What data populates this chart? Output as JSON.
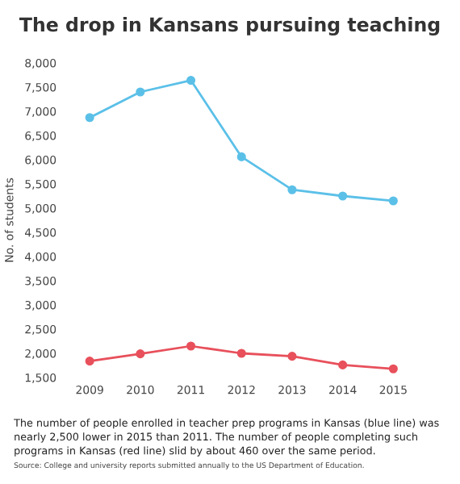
{
  "chart_data": {
    "type": "line",
    "title": "The drop in Kansans pursuing teaching",
    "ylabel": "No. of students",
    "categories": [
      "2009",
      "2010",
      "2011",
      "2012",
      "2013",
      "2014",
      "2015"
    ],
    "series": [
      {
        "color": "#5bc0e8",
        "values": [
          6870,
          7400,
          7640,
          6060,
          5380,
          5250,
          5150
        ]
      },
      {
        "color": "#e8505b",
        "values": [
          1840,
          1990,
          2150,
          2000,
          1940,
          1760,
          1680
        ]
      }
    ],
    "ylim": [
      1500,
      8000
    ],
    "yticks": [
      {
        "value": 1500,
        "label": "1,500"
      },
      {
        "value": 2000,
        "label": "2,000"
      },
      {
        "value": 2500,
        "label": "2,500"
      },
      {
        "value": 3000,
        "label": "3,000"
      },
      {
        "value": 3500,
        "label": "3,500"
      },
      {
        "value": 4000,
        "label": "4,000"
      },
      {
        "value": 4500,
        "label": "4,500"
      },
      {
        "value": 5000,
        "label": "5,000"
      },
      {
        "value": 5500,
        "label": "5,500"
      },
      {
        "value": 6000,
        "label": "6,000"
      },
      {
        "value": 6500,
        "label": "6,500"
      },
      {
        "value": 7000,
        "label": "7,000"
      },
      {
        "value": 7500,
        "label": "7,500"
      },
      {
        "value": 8000,
        "label": "8,000"
      }
    ],
    "grid": false,
    "marker": "circle",
    "line_style": "solid",
    "annotations": [
      "The number of people enrolled in teacher prep programs in Kansas (blue line) was nearly 2,500 lower in 2015 than 2011. The number of people completing such programs in Kansas (red line) slid by about 460 over the same period.",
      "Source: College and university reports submitted annually to the US Department of Education."
    ]
  }
}
